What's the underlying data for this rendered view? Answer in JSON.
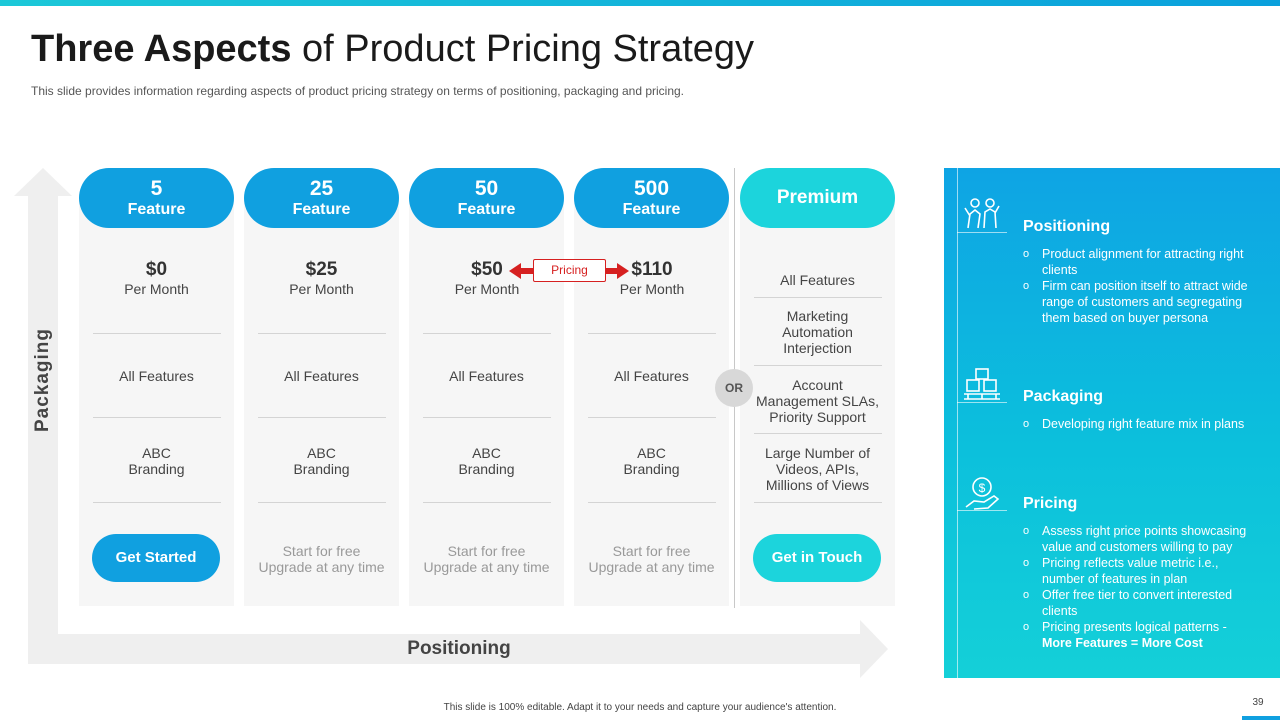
{
  "slide": {
    "title_bold": "Three Aspects",
    "title_rest": "of Product Pricing Strategy",
    "subtitle": "This slide provides information regarding aspects of product pricing strategy on terms of positioning, packaging and pricing.",
    "footer": "This slide is 100% editable. Adapt it to your needs and capture your audience's attention.",
    "page_number": "39"
  },
  "axes": {
    "vertical": "Packaging",
    "horizontal": "Positioning"
  },
  "plans": [
    {
      "count": "5",
      "unit": "Feature",
      "price": "$0",
      "period": "Per Month",
      "features": "All Features",
      "branding_line1": "ABC",
      "branding_line2": "Branding",
      "cta": "Get Started"
    },
    {
      "count": "25",
      "unit": "Feature",
      "price": "$25",
      "period": "Per Month",
      "features": "All Features",
      "branding_line1": "ABC",
      "branding_line2": "Branding",
      "cta_line1": "Start for free",
      "cta_line2": "Upgrade  at any time"
    },
    {
      "count": "50",
      "unit": "Feature",
      "price": "$50",
      "period": "Per Month",
      "features": "All Features",
      "branding_line1": "ABC",
      "branding_line2": "Branding",
      "cta_line1": "Start for free",
      "cta_line2": "Upgrade  at any time"
    },
    {
      "count": "500",
      "unit": "Feature",
      "price": "$110",
      "period": "Per Month",
      "features": "All Features",
      "branding_line1": "ABC",
      "branding_line2": "Branding",
      "cta_line1": "Start for free",
      "cta_line2": "Upgrade  at any time"
    }
  ],
  "premium": {
    "title": "Premium",
    "item1": "All Features",
    "item2_l1": "Marketing",
    "item2_l2": "Automation",
    "item2_l3": "Interjection",
    "item3_l1": "Account",
    "item3_l2": "Management SLAs,",
    "item3_l3": "Priority Support",
    "item4_l1": "Large Number of",
    "item4_l2": "Videos, APIs,",
    "item4_l3": "Millions of Views",
    "cta": "Get in Touch"
  },
  "or_label": "OR",
  "pricing_tag": "Pricing",
  "panel": {
    "positioning": {
      "title": "Positioning",
      "icon": "people-icon",
      "items": [
        "Product alignment for attracting right clients",
        "Firm can position itself to attract wide range of customers and segregating them based on buyer persona"
      ]
    },
    "packaging": {
      "title": "Packaging",
      "icon": "boxes-icon",
      "items": [
        "Developing  right feature  mix in plans"
      ]
    },
    "pricing": {
      "title": "Pricing",
      "icon": "money-hand-icon",
      "items": [
        "Assess right price points showcasing value  and customers willing to pay",
        "Pricing reflects value  metric i.e., number of features  in plan",
        "Offer free  tier to convert  interested clients",
        "Pricing presents logical patterns -"
      ],
      "emphasis": "More Features = More Cost"
    }
  },
  "colors": {
    "accent_blue": "#10a0e0",
    "accent_cyan": "#1cd4dc",
    "arrow_red": "#d62020"
  }
}
